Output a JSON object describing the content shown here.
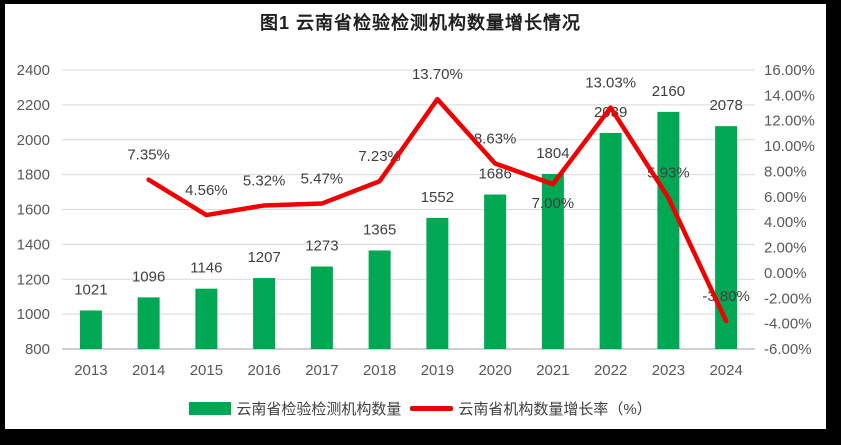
{
  "title": "图1 云南省检验检测机构数量增长情况",
  "chart_data": {
    "type": "bar+line",
    "title": "图1 云南省检验检测机构数量增长情况",
    "categories": [
      "2013",
      "2014",
      "2015",
      "2016",
      "2017",
      "2018",
      "2019",
      "2020",
      "2021",
      "2022",
      "2023",
      "2024"
    ],
    "series": [
      {
        "name": "云南省检验检测机构数量",
        "type": "bar",
        "axis": "left",
        "color": "#00A854",
        "values": [
          1021,
          1096,
          1146,
          1207,
          1273,
          1365,
          1552,
          1686,
          1804,
          2039,
          2160,
          2078
        ],
        "labels": [
          "1021",
          "1096",
          "1146",
          "1207",
          "1273",
          "1365",
          "1552",
          "1686",
          "1804",
          "2039",
          "2160",
          "2078"
        ]
      },
      {
        "name": "云南省机构数量增长率（%）",
        "type": "line",
        "axis": "right",
        "color": "#F00000",
        "values": [
          null,
          7.35,
          4.56,
          5.32,
          5.47,
          7.23,
          13.7,
          8.63,
          7.0,
          13.03,
          5.93,
          -3.8
        ],
        "labels": [
          "",
          "7.35%",
          "4.56%",
          "5.32%",
          "5.47%",
          "7.23%",
          "13.70%",
          "8.63%",
          "7.00%",
          "13.03%",
          "5.93%",
          "-3.80%"
        ],
        "label_positions": [
          "",
          "above",
          "above",
          "above",
          "above",
          "above",
          "above",
          "above",
          "below",
          "above",
          "above",
          "above"
        ]
      }
    ],
    "left_axis": {
      "min": 800,
      "max": 2400,
      "tick_values": [
        2400,
        2200,
        2000,
        1800,
        1600,
        1400,
        1200,
        1000,
        800
      ],
      "tick_labels": [
        "2400",
        "2200",
        "2000",
        "1800",
        "1600",
        "1400",
        "1200",
        "1000",
        "800"
      ]
    },
    "right_axis": {
      "min": -6,
      "max": 16,
      "tick_values": [
        16,
        14,
        12,
        10,
        8,
        6,
        4,
        2,
        0,
        -2,
        -4,
        -6
      ],
      "tick_labels": [
        "16.00%",
        "14.00%",
        "12.00%",
        "10.00%",
        "8.00%",
        "6.00%",
        "4.00%",
        "2.00%",
        "0.00%",
        "-2.00%",
        "-4.00%",
        "-6.00%"
      ]
    },
    "grid": true,
    "legend_position": "bottom"
  },
  "legend": {
    "items": [
      {
        "label": "云南省检验检测机构数量",
        "swatch": "bar",
        "color": "#00A854"
      },
      {
        "label": "云南省机构数量增长率（%）",
        "swatch": "line",
        "color": "#F00000"
      }
    ]
  },
  "colors": {
    "bar": "#00A854",
    "line": "#F00000",
    "grid": "#D9D9D9",
    "axis_line": "#C0C0C0",
    "axis_text": "#595959",
    "data_label": "#404040",
    "frame": "#000000",
    "background": "#FFFFFF"
  }
}
